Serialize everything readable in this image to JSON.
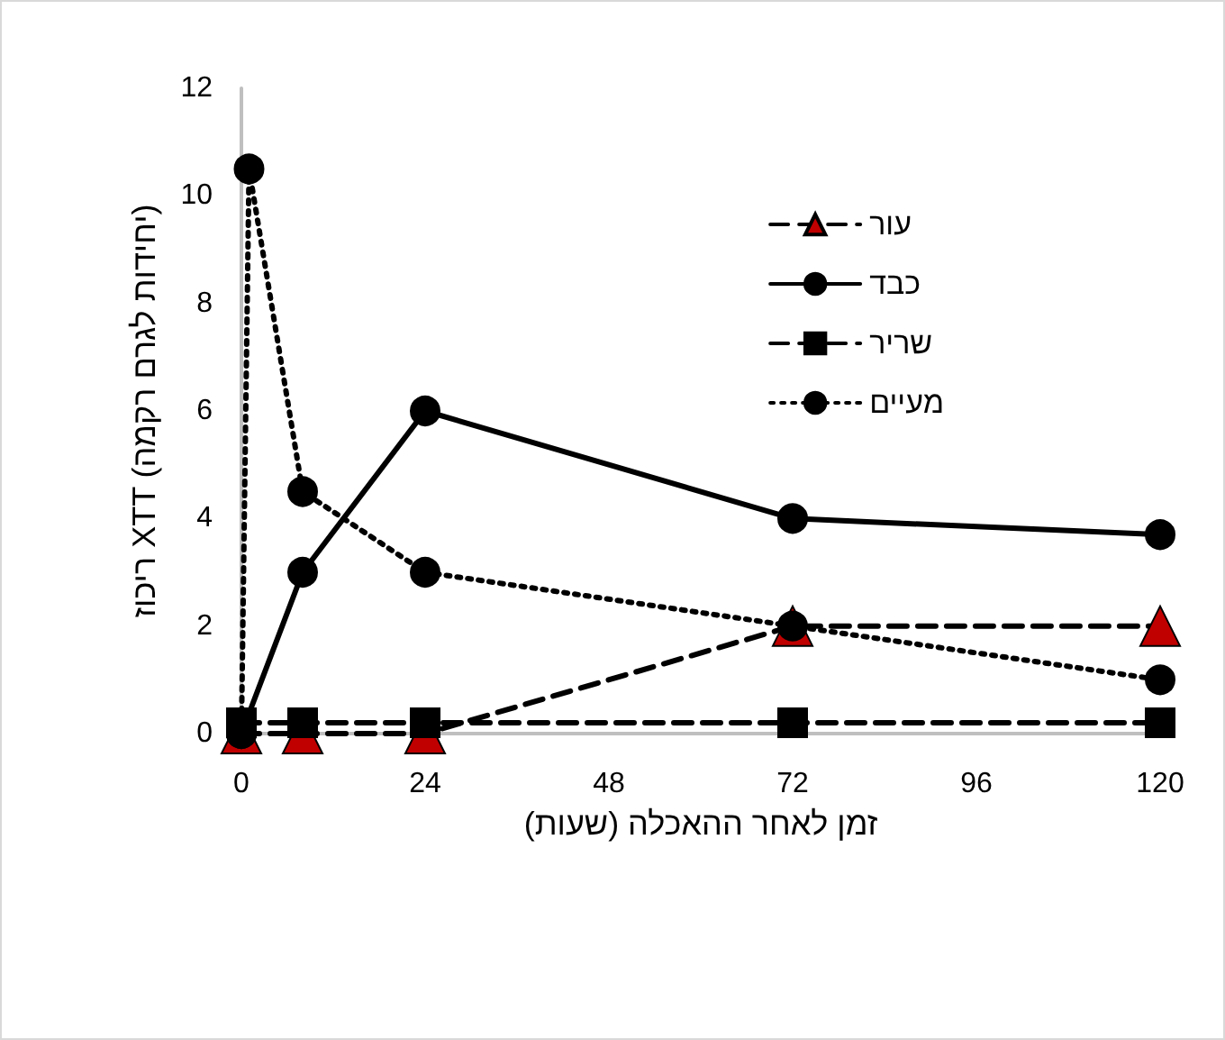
{
  "chart_data": {
    "type": "line",
    "xlabel": "זמן לאחר ההאכלה (שעות)",
    "ylabel": "ריכוז XTT (יחידות לגרם רקמה)",
    "xlim": [
      0,
      120
    ],
    "xticks": [
      0,
      24,
      48,
      72,
      96,
      120
    ],
    "ylim": [
      0,
      12
    ],
    "yticks": [
      0,
      2,
      4,
      6,
      8,
      10,
      12
    ],
    "grid": false,
    "legend": "top right",
    "series": [
      {
        "name": "עור",
        "color": "#c00000",
        "marker": "triangle",
        "line_style": "dashed",
        "x": [
          0,
          8,
          24,
          72,
          120
        ],
        "values": [
          0,
          0,
          0,
          2,
          2
        ]
      },
      {
        "name": "כבד",
        "color": "#000000",
        "marker": "circle",
        "line_style": "solid",
        "x": [
          0,
          8,
          24,
          72,
          120
        ],
        "values": [
          0,
          3,
          6,
          4,
          3.7
        ]
      },
      {
        "name": "שריר",
        "color": "#000000",
        "marker": "square",
        "line_style": "dashed",
        "x": [
          0,
          8,
          24,
          72,
          120
        ],
        "values": [
          0.2,
          0.2,
          0.2,
          0.2,
          0.2
        ]
      },
      {
        "name": "מעיים",
        "color": "#000000",
        "marker": "circle",
        "line_style": "dotted",
        "x": [
          0,
          1,
          8,
          24,
          72,
          120
        ],
        "values": [
          0,
          10.5,
          4.5,
          3,
          2,
          1
        ]
      }
    ]
  }
}
